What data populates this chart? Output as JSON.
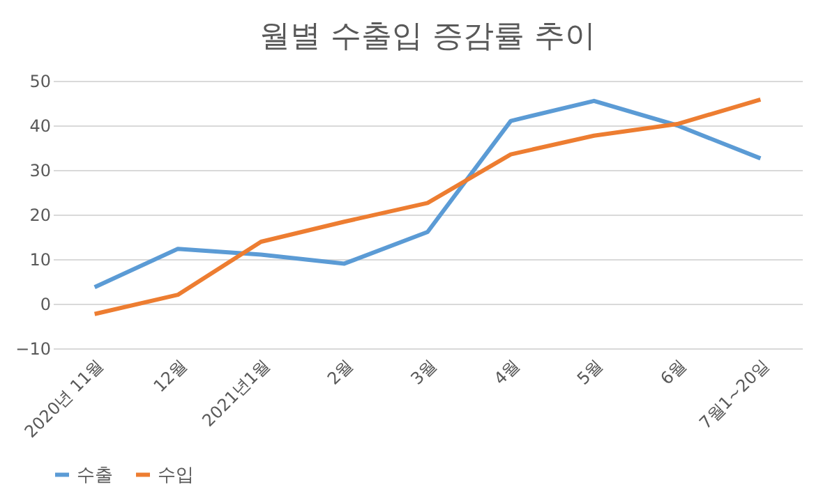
{
  "chart_data": {
    "type": "line",
    "title": "월별 수출입 증감률 추이",
    "categories": [
      "2020년 11월",
      "12월",
      "2021년1월",
      "2월",
      "3월",
      "4월",
      "5월",
      "6월",
      "7월1~20일"
    ],
    "series": [
      {
        "name": "수출",
        "color": "#5b9bd5",
        "values": [
          3.7,
          12.3,
          11,
          9,
          16.1,
          41,
          45.5,
          40,
          32.6
        ]
      },
      {
        "name": "수입",
        "color": "#ed7d31",
        "values": [
          -2.3,
          2,
          13.9,
          18.4,
          22.6,
          33.5,
          37.7,
          40.3,
          45.8
        ]
      }
    ],
    "ylim": [
      -10,
      50
    ],
    "yticks": [
      -10,
      0,
      10,
      20,
      30,
      40,
      50
    ],
    "grid": "y",
    "legend": "bottom",
    "marker": "none",
    "line_style": "solid"
  }
}
